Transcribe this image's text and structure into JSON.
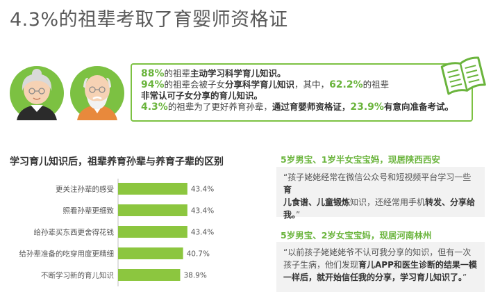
{
  "title": "4.3%的祖辈考取了育婴师资格证",
  "stats": [
    {
      "value": "88%",
      "parts": [
        "的祖辈",
        "主动学习科学育儿知识。"
      ]
    },
    {
      "value": "94%",
      "parts": [
        "的祖辈会被子女",
        "分享科学育儿知识",
        "，其中，",
        "62.2%",
        "的祖辈"
      ]
    },
    {
      "parts": [
        "非常认可子女分享的育儿知识。"
      ]
    },
    {
      "value": "4.3%",
      "parts": [
        "的祖辈为了更好养育孙辈，",
        "通过育婴师资格证，",
        "23.9%",
        "有意向准备考试。"
      ]
    }
  ],
  "section_title": "学习育儿知识后，祖辈养育孙辈与养育子辈的区别",
  "chart_data": {
    "type": "bar",
    "orientation": "horizontal",
    "categories": [
      "更关注孙辈的感受",
      "照看孙辈更细致",
      "给孙辈买东西更舍得花钱",
      "给孙辈准备的吃穿用度更精细",
      "不断学习新的育儿知识"
    ],
    "values": [
      43.4,
      43.4,
      43.4,
      40.7,
      38.9
    ],
    "value_labels": [
      "43.4%",
      "43.4%",
      "43.4%",
      "40.7%",
      "38.9%"
    ],
    "xlim": [
      0,
      100
    ],
    "color": "#8cc63f"
  },
  "quotes": [
    {
      "title": "5岁男宝、1岁半女宝宝妈，现居陕西西安",
      "lines": [
        [
          {
            "t": "“孩子姥姥经常在微信公众号和短视频平台学习一些"
          },
          {
            "t": "育",
            "b": true
          }
        ],
        [
          {
            "t": "儿食谱、儿童锻炼",
            "b": true
          },
          {
            "t": "知识，还经常用手机"
          },
          {
            "t": "转发、分享给",
            "b": true
          }
        ],
        [
          {
            "t": "我。",
            "b": true
          },
          {
            "t": "”"
          }
        ]
      ]
    },
    {
      "title": "5岁男宝、2岁女宝宝妈，现居河南林州",
      "lines": [
        [
          {
            "t": "“以前孩子姥姥姥爷不认可我分享的知识，但有一次"
          }
        ],
        [
          {
            "t": "孩子生病，他们发现"
          },
          {
            "t": "育儿APP和医生诊断的结果一模",
            "b": true
          }
        ],
        [
          {
            "t": "一样后，就开始信任我的分享，学习育儿知识了。",
            "b": true
          },
          {
            "t": "”"
          }
        ]
      ]
    }
  ]
}
